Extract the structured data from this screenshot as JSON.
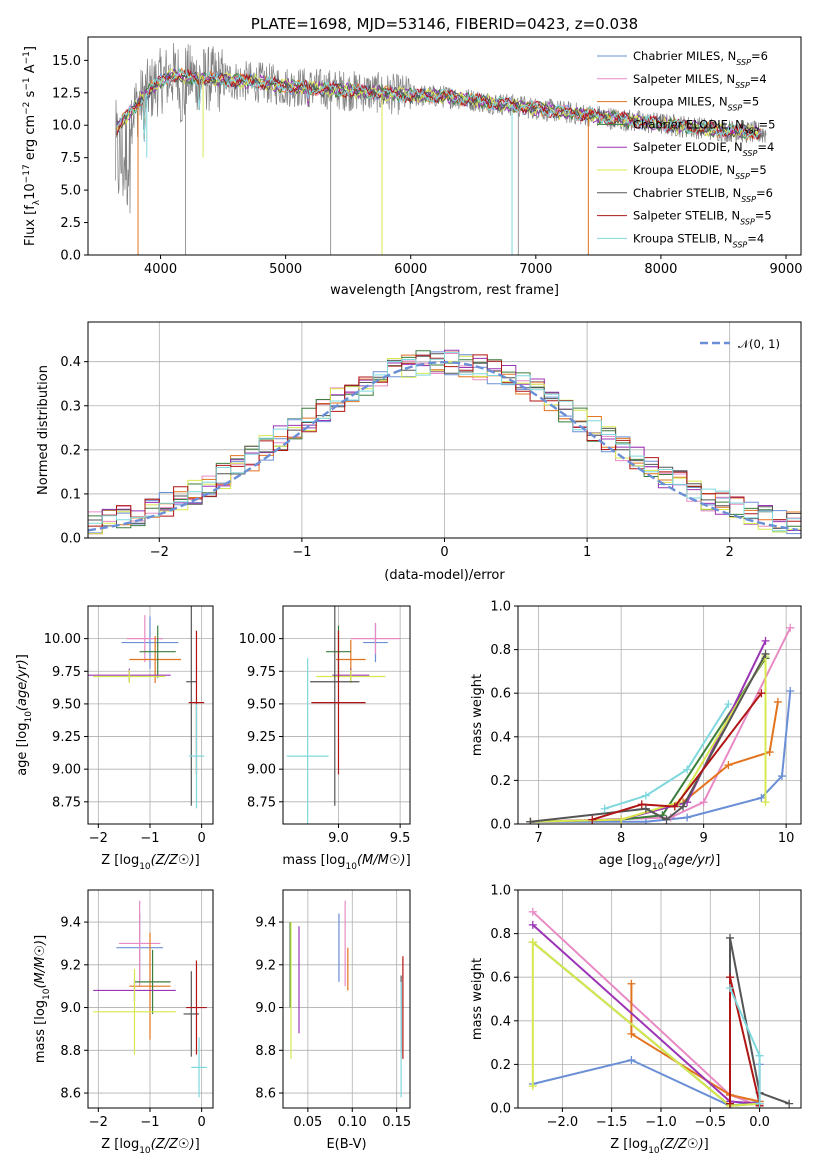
{
  "chart_data": [
    {
      "id": "spectrum",
      "type": "line",
      "title": "PLATE=1698, MJD=53146, FIBERID=0423, z=0.038",
      "xlabel": "wavelength [Angstrom, rest frame]",
      "ylabel_parts": [
        "Flux [f",
        "λ",
        "10",
        "−17",
        " erg cm",
        "−2",
        " s",
        "−1",
        " A",
        "−1",
        "]"
      ],
      "xlim": [
        3420,
        9120
      ],
      "ylim": [
        0,
        16.8
      ],
      "xticks": [
        4000,
        5000,
        6000,
        7000,
        8000,
        9000
      ],
      "yticks": [
        0.0,
        2.5,
        5.0,
        7.5,
        10.0,
        12.5,
        15.0
      ],
      "ytick_labels": [
        "0.0",
        "2.5",
        "5.0",
        "7.5",
        "10.0",
        "12.5",
        "15.0"
      ],
      "continuum": {
        "x": [
          3650,
          3700,
          3800,
          3900,
          4000,
          4100,
          4300,
          4500,
          4800,
          5000,
          5300,
          5600,
          6000,
          6300,
          6600,
          7000,
          7400,
          7800,
          8200,
          8500,
          8800
        ],
        "y": [
          9.8,
          10.4,
          11.4,
          12.6,
          13.4,
          13.9,
          13.6,
          13.5,
          13.3,
          13.0,
          12.8,
          12.6,
          12.3,
          12.2,
          11.8,
          11.3,
          10.8,
          10.3,
          9.9,
          9.6,
          9.4
        ]
      },
      "data_series_name": "observed",
      "dips": [
        {
          "x": 3820,
          "to": 0.0
        },
        {
          "x": 5770,
          "to": 0.0
        },
        {
          "x": 6810,
          "to": 0.0
        },
        {
          "x": 7420,
          "to": 0.0
        },
        {
          "x": 4340,
          "to": 7.5
        },
        {
          "x": 3890,
          "to": 7.5
        }
      ],
      "legend": [
        {
          "label": "Chabrier MILES, N",
          "sub": "SSP",
          "suffix": "=6",
          "color": "#6a8fd6"
        },
        {
          "label": "Salpeter MILES, N",
          "sub": "SSP",
          "suffix": "=4",
          "color": "#e88bc4"
        },
        {
          "label": "Kroupa MILES, N",
          "sub": "SSP",
          "suffix": "=5",
          "color": "#e2741f"
        },
        {
          "label": "Chabrier ELODIE, N",
          "sub": "SSP",
          "suffix": "=5",
          "color": "#3b7d3b"
        },
        {
          "label": "Salpeter ELODIE, N",
          "sub": "SSP",
          "suffix": "=4",
          "color": "#9b35b5"
        },
        {
          "label": "Kroupa ELODIE, N",
          "sub": "SSP",
          "suffix": "=5",
          "color": "#d7e84f"
        },
        {
          "label": "Chabrier STELIB, N",
          "sub": "SSP",
          "suffix": "=6",
          "color": "#555555"
        },
        {
          "label": "Salpeter STELIB, N",
          "sub": "SSP",
          "suffix": "=5",
          "color": "#b01515"
        },
        {
          "label": "Kroupa STELIB, N",
          "sub": "SSP",
          "suffix": "=4",
          "color": "#7fd8dd"
        }
      ],
      "data_color": "#808080"
    },
    {
      "id": "residuals",
      "type": "line",
      "xlabel": "(data-model)/error",
      "ylabel": "Normed distribution",
      "xlim": [
        -2.5,
        2.5
      ],
      "ylim": [
        0,
        0.49
      ],
      "xticks": [
        -2,
        -1,
        0,
        1,
        2
      ],
      "xtick_labels": [
        "−2",
        "−1",
        "0",
        "1",
        "2"
      ],
      "yticks": [
        0.0,
        0.1,
        0.2,
        0.3,
        0.4
      ],
      "ytick_labels": [
        "0.0",
        "0.1",
        "0.2",
        "0.3",
        "0.4"
      ],
      "bin_width": 0.1,
      "legend": [
        {
          "label": "𝒩(0, 1)",
          "color": "#6a8fd6"
        }
      ],
      "reference": {
        "name": "𝒩(0, 1)",
        "mean": 0,
        "sigma": 1,
        "color": "#6a8fd6"
      },
      "histogram_colors": [
        "#6a8fd6",
        "#e88bc4",
        "#e2741f",
        "#3b7d3b",
        "#9b35b5",
        "#d7e84f",
        "#555555",
        "#b01515",
        "#7fd8dd"
      ]
    },
    {
      "id": "age-vs-Z",
      "type": "scatter",
      "xlabel": "Z [log10(Z/Z☉)]",
      "ylabel": "age  [log10(age/yr)]",
      "xlim": [
        -2.2,
        0.22
      ],
      "ylim": [
        8.58,
        10.25
      ],
      "xticks": [
        -2,
        -1,
        0
      ],
      "xtick_labels": [
        "−2",
        "−1",
        "0"
      ],
      "yticks": [
        8.75,
        9.0,
        9.25,
        9.5,
        9.75,
        10.0
      ],
      "ytick_labels": [
        "8.75",
        "9.00",
        "9.25",
        "9.50",
        "9.75",
        "10.00"
      ],
      "points": [
        {
          "x": -1.0,
          "y": 9.97,
          "xerr": 0.55,
          "yerr": 0.2,
          "color": "#6a8fd6"
        },
        {
          "x": -1.1,
          "y": 10.0,
          "xerr": 0.35,
          "yerr": 0.18,
          "color": "#e88bc4"
        },
        {
          "x": -0.9,
          "y": 9.84,
          "xerr": 0.5,
          "yerr": 0.18,
          "color": "#e2741f"
        },
        {
          "x": -0.85,
          "y": 9.9,
          "xerr": 0.35,
          "yerr": 0.2,
          "color": "#3b7d3b"
        },
        {
          "x": -1.4,
          "y": 9.72,
          "xerr": 0.8,
          "yerr": 0.05,
          "color": "#9b35b5"
        },
        {
          "x": -1.4,
          "y": 9.71,
          "xerr": 0.7,
          "yerr": 0.05,
          "color": "#d7e84f"
        },
        {
          "x": -0.2,
          "y": 9.67,
          "xerr": 0.1,
          "yerr": 0.95,
          "color": "#555555"
        },
        {
          "x": -0.1,
          "y": 9.51,
          "xerr": 0.15,
          "yerr": 0.55,
          "color": "#b01515"
        },
        {
          "x": -0.1,
          "y": 9.1,
          "xerr": 0.15,
          "yerr": 0.4,
          "color": "#7fd8dd"
        }
      ]
    },
    {
      "id": "age-vs-mass",
      "type": "scatter",
      "xlabel": "mass [log10(M/M☉)]",
      "ylim": [
        8.58,
        10.25
      ],
      "xlim": [
        8.55,
        9.58
      ],
      "xticks": [
        9.0,
        9.5
      ],
      "xtick_labels": [
        "9.0",
        "9.5"
      ],
      "yticks": [
        8.75,
        9.0,
        9.25,
        9.5,
        9.75,
        10.0
      ],
      "ytick_labels": [
        "8.75",
        "9.00",
        "9.25",
        "9.50",
        "9.75",
        "10.00"
      ],
      "points": [
        {
          "x": 9.3,
          "y": 9.97,
          "xerr": 0.1,
          "yerr": 0.15,
          "color": "#6a8fd6"
        },
        {
          "x": 9.3,
          "y": 10.0,
          "xerr": 0.2,
          "yerr": 0.12,
          "color": "#e88bc4"
        },
        {
          "x": 9.1,
          "y": 9.84,
          "xerr": 0.12,
          "yerr": 0.15,
          "color": "#e2741f"
        },
        {
          "x": 9.0,
          "y": 9.9,
          "xerr": 0.1,
          "yerr": 0.2,
          "color": "#3b7d3b"
        },
        {
          "x": 9.1,
          "y": 9.72,
          "xerr": 0.15,
          "yerr": 0.05,
          "color": "#9b35b5"
        },
        {
          "x": 9.1,
          "y": 9.71,
          "xerr": 0.28,
          "yerr": 0.05,
          "color": "#d7e84f"
        },
        {
          "x": 8.97,
          "y": 9.67,
          "xerr": 0.2,
          "yerr": 0.95,
          "color": "#555555"
        },
        {
          "x": 9.0,
          "y": 9.51,
          "xerr": 0.22,
          "yerr": 0.55,
          "color": "#b01515"
        },
        {
          "x": 8.75,
          "y": 9.1,
          "xerr": 0.17,
          "yerr": 0.75,
          "color": "#7fd8dd"
        }
      ]
    },
    {
      "id": "weight-vs-age",
      "type": "line",
      "xlabel": "age  [log10(age/yr)]",
      "ylabel": "mass weight",
      "xlim": [
        6.75,
        10.18
      ],
      "ylim": [
        0,
        1.0
      ],
      "xticks": [
        7,
        8,
        9,
        10
      ],
      "xtick_labels": [
        "7",
        "8",
        "9",
        "10"
      ],
      "yticks": [
        0.0,
        0.2,
        0.4,
        0.6,
        0.8,
        1.0
      ],
      "ytick_labels": [
        "0.0",
        "0.2",
        "0.4",
        "0.6",
        "0.8",
        "1.0"
      ],
      "series": [
        {
          "color": "#6a8fd6",
          "x": [
            6.9,
            8.3,
            8.8,
            9.7,
            9.95,
            10.05
          ],
          "y": [
            0.01,
            0.01,
            0.03,
            0.12,
            0.22,
            0.61
          ]
        },
        {
          "color": "#e88bc4",
          "x": [
            6.9,
            8.6,
            9.0,
            10.05
          ],
          "y": [
            0.01,
            0.03,
            0.1,
            0.9
          ]
        },
        {
          "color": "#e2741f",
          "x": [
            6.9,
            8.0,
            8.75,
            9.3,
            9.8,
            9.9
          ],
          "y": [
            0.01,
            0.02,
            0.1,
            0.27,
            0.33,
            0.56
          ]
        },
        {
          "color": "#3b7d3b",
          "x": [
            6.9,
            8.0,
            8.5,
            9.75
          ],
          "y": [
            0.01,
            0.02,
            0.04,
            0.76
          ]
        },
        {
          "color": "#9b35b5",
          "x": [
            6.9,
            8.0,
            8.8,
            9.75
          ],
          "y": [
            0.01,
            0.02,
            0.1,
            0.84
          ]
        },
        {
          "color": "#d7e84f",
          "x": [
            6.9,
            8.0,
            8.7,
            9.75,
            9.75
          ],
          "y": [
            0.01,
            0.02,
            0.1,
            0.77,
            0.1
          ]
        },
        {
          "color": "#555555",
          "x": [
            6.9,
            8.3,
            8.55,
            8.75,
            9.75
          ],
          "y": [
            0.01,
            0.07,
            0.02,
            0.08,
            0.78
          ]
        },
        {
          "color": "#b01515",
          "x": [
            7.65,
            8.25,
            8.65,
            9.7
          ],
          "y": [
            0.02,
            0.09,
            0.08,
            0.6
          ]
        },
        {
          "color": "#7fd8dd",
          "x": [
            7.8,
            8.3,
            8.8,
            9.3
          ],
          "y": [
            0.07,
            0.13,
            0.25,
            0.55
          ]
        }
      ]
    },
    {
      "id": "mass-vs-Z",
      "type": "scatter",
      "xlabel": "Z [log10(Z/Z☉)]",
      "ylabel": "mass [log10(M/M☉)]",
      "xlim": [
        -2.2,
        0.22
      ],
      "ylim": [
        8.53,
        9.55
      ],
      "xticks": [
        -2,
        -1,
        0
      ],
      "xtick_labels": [
        "−2",
        "−1",
        "0"
      ],
      "yticks": [
        8.6,
        8.8,
        9.0,
        9.2,
        9.4
      ],
      "ytick_labels": [
        "8.6",
        "8.8",
        "9.0",
        "9.2",
        "9.4"
      ],
      "points": [
        {
          "x": -1.2,
          "y": 9.28,
          "xerr": 0.45,
          "yerr": 0.16,
          "color": "#6a8fd6"
        },
        {
          "x": -1.2,
          "y": 9.3,
          "xerr": 0.4,
          "yerr": 0.2,
          "color": "#e88bc4"
        },
        {
          "x": -1.0,
          "y": 9.1,
          "xerr": 0.4,
          "yerr": 0.25,
          "color": "#e2741f"
        },
        {
          "x": -0.95,
          "y": 9.12,
          "xerr": 0.35,
          "yerr": 0.15,
          "color": "#3b7d3b"
        },
        {
          "x": -1.3,
          "y": 9.08,
          "xerr": 0.8,
          "yerr": 0.05,
          "color": "#9b35b5"
        },
        {
          "x": -1.3,
          "y": 8.98,
          "xerr": 0.8,
          "yerr": 0.2,
          "color": "#d7e84f"
        },
        {
          "x": -0.2,
          "y": 8.97,
          "xerr": 0.15,
          "yerr": 0.2,
          "color": "#555555"
        },
        {
          "x": -0.1,
          "y": 9.0,
          "xerr": 0.2,
          "yerr": 0.22,
          "color": "#b01515"
        },
        {
          "x": -0.05,
          "y": 8.72,
          "xerr": 0.15,
          "yerr": 0.14,
          "color": "#7fd8dd"
        }
      ]
    },
    {
      "id": "mass-vs-ebv",
      "type": "scatter",
      "xlabel": "E(B-V)",
      "xlim": [
        0.022,
        0.165
      ],
      "ylim": [
        8.53,
        9.55
      ],
      "xticks": [
        0.05,
        0.1,
        0.15
      ],
      "xtick_labels": [
        "0.05",
        "0.10",
        "0.15"
      ],
      "yticks": [
        8.6,
        8.8,
        9.0,
        9.2,
        9.4
      ],
      "ytick_labels": [
        "8.6",
        "8.8",
        "9.0",
        "9.2",
        "9.4"
      ],
      "points": [
        {
          "x": 0.085,
          "y": 9.28,
          "xerr": 0.0,
          "yerr": 0.16,
          "color": "#6a8fd6"
        },
        {
          "x": 0.092,
          "y": 9.3,
          "xerr": 0.0,
          "yerr": 0.2,
          "color": "#e88bc4"
        },
        {
          "x": 0.095,
          "y": 9.18,
          "xerr": 0.0,
          "yerr": 0.1,
          "color": "#e2741f"
        },
        {
          "x": 0.03,
          "y": 9.2,
          "xerr": 0.0,
          "yerr": 0.2,
          "color": "#3b7d3b"
        },
        {
          "x": 0.04,
          "y": 9.13,
          "xerr": 0.0,
          "yerr": 0.25,
          "color": "#9b35b5"
        },
        {
          "x": 0.031,
          "y": 9.08,
          "xerr": 0.0,
          "yerr": 0.32,
          "color": "#d7e84f"
        },
        {
          "x": 0.155,
          "y": 8.97,
          "xerr": 0.0,
          "yerr": 0.18,
          "color": "#555555"
        },
        {
          "x": 0.157,
          "y": 9.0,
          "xerr": 0.0,
          "yerr": 0.24,
          "color": "#b01515"
        },
        {
          "x": 0.155,
          "y": 8.85,
          "xerr": 0.0,
          "yerr": 0.27,
          "color": "#7fd8dd"
        }
      ]
    },
    {
      "id": "weight-vs-Z",
      "type": "line",
      "xlabel": "Z [log10(Z/Z☉)]",
      "ylabel": "mass weight",
      "xlim": [
        -2.45,
        0.42
      ],
      "ylim": [
        0,
        1.0
      ],
      "xticks": [
        -2.0,
        -1.5,
        -1.0,
        -0.5,
        0.0
      ],
      "xtick_labels": [
        "−2.0",
        "−1.5",
        "−1.0",
        "−0.5",
        "0.0"
      ],
      "yticks": [
        0.0,
        0.2,
        0.4,
        0.6,
        0.8,
        1.0
      ],
      "ytick_labels": [
        "0.0",
        "0.2",
        "0.4",
        "0.6",
        "0.8",
        "1.0"
      ],
      "series": [
        {
          "color": "#6a8fd6",
          "x": [
            -2.3,
            -1.3,
            -0.3,
            0.0,
            0.0
          ],
          "y": [
            0.11,
            0.22,
            0.01,
            0.03,
            0.2
          ]
        },
        {
          "color": "#e88bc4",
          "x": [
            -2.3,
            -0.3,
            0.0
          ],
          "y": [
            0.9,
            0.06,
            0.01
          ]
        },
        {
          "color": "#e2741f",
          "x": [
            -1.3,
            -1.3,
            -0.3,
            0.0
          ],
          "y": [
            0.57,
            0.34,
            0.06,
            0.03
          ]
        },
        {
          "color": "#3b7d3b",
          "x": [
            -2.3,
            -0.3,
            0.0
          ],
          "y": [
            0.76,
            0.01,
            0.02
          ]
        },
        {
          "color": "#9b35b5",
          "x": [
            -2.3,
            -0.3,
            0.0
          ],
          "y": [
            0.84,
            0.03,
            0.02
          ]
        },
        {
          "color": "#d7e84f",
          "x": [
            -2.3,
            -2.3,
            -0.3,
            0.0
          ],
          "y": [
            0.1,
            0.76,
            0.01,
            0.02
          ]
        },
        {
          "color": "#555555",
          "x": [
            -0.3,
            -0.3,
            0.0,
            0.3
          ],
          "y": [
            0.02,
            0.78,
            0.07,
            0.02
          ]
        },
        {
          "color": "#b01515",
          "x": [
            -0.3,
            -0.3,
            0.0,
            0.0
          ],
          "y": [
            0.02,
            0.6,
            0.02,
            0.01
          ]
        },
        {
          "color": "#7fd8dd",
          "x": [
            -0.3,
            0.0,
            0.0
          ],
          "y": [
            0.55,
            0.24,
            0.02
          ]
        }
      ]
    }
  ]
}
